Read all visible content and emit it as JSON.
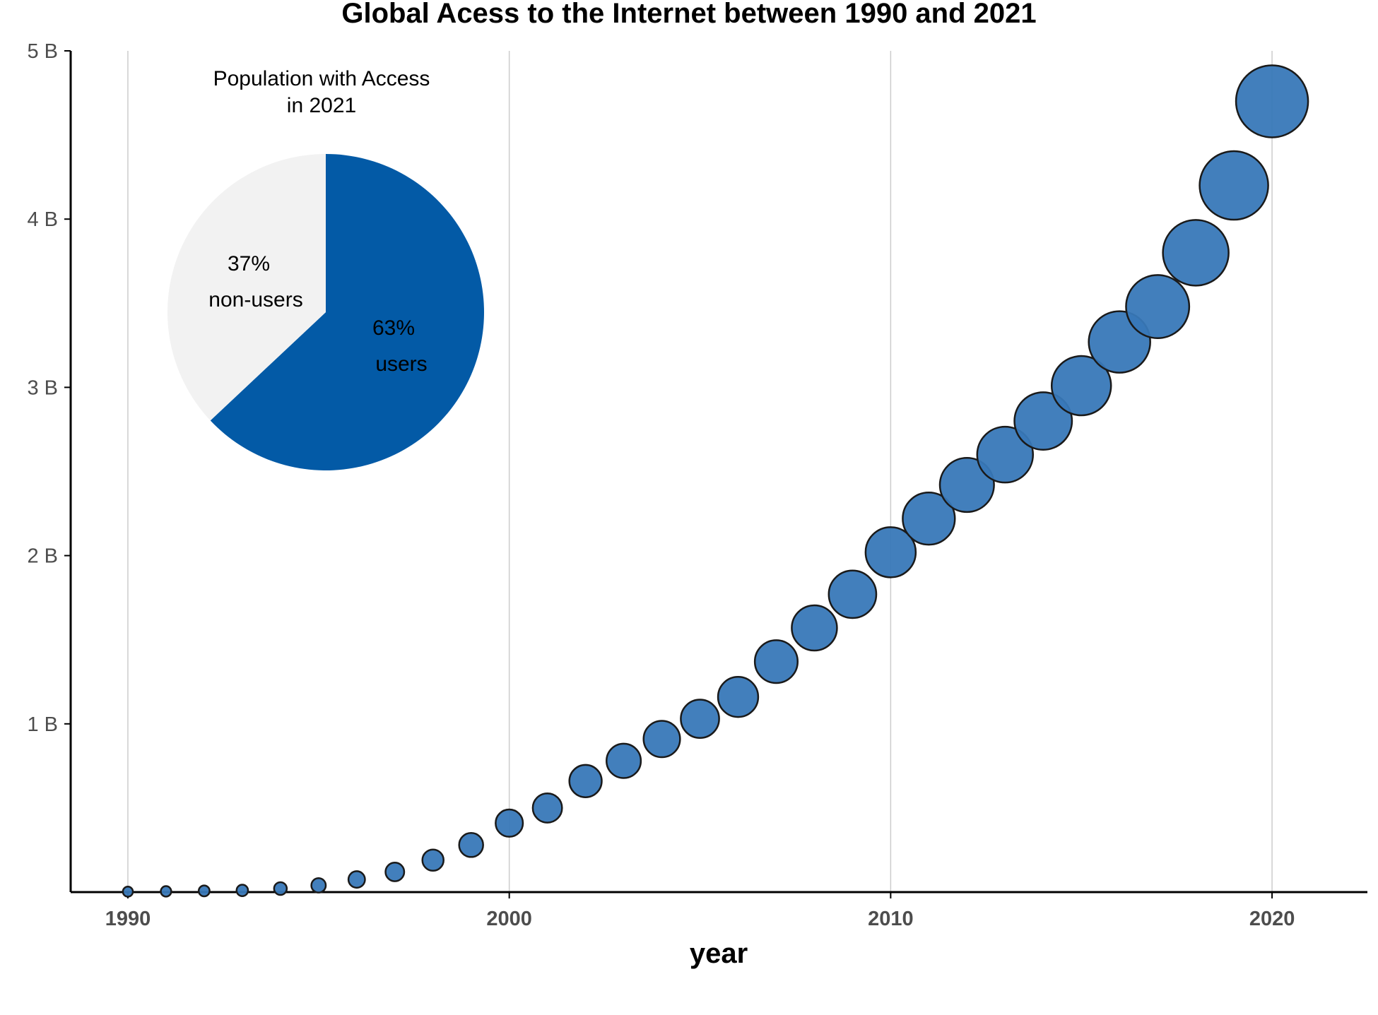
{
  "chart_data": [
    {
      "type": "scatter",
      "title": "Global Acess to the Internet between 1990 and 2021",
      "xlabel": "year",
      "ylabel": "",
      "xlim": [
        1988.5,
        2022.5
      ],
      "ylim": [
        0,
        5000000000
      ],
      "x_ticks": [
        1990,
        2000,
        2010,
        2020
      ],
      "y_ticks": [
        {
          "value": 1000000000,
          "label": "1 B"
        },
        {
          "value": 2000000000,
          "label": "2 B"
        },
        {
          "value": 3000000000,
          "label": "3 B"
        },
        {
          "value": 4000000000,
          "label": "4 B"
        },
        {
          "value": 5000000000,
          "label": "5 B"
        }
      ],
      "grid": "vertical",
      "marker_color": "#3878b8",
      "marker_edge_color": "#1a1a1a",
      "size_encoding": "y",
      "points": [
        {
          "x": 1990,
          "y": 2600000
        },
        {
          "x": 1991,
          "y": 4400000
        },
        {
          "x": 1992,
          "y": 7000000
        },
        {
          "x": 1993,
          "y": 10000000
        },
        {
          "x": 1994,
          "y": 21000000
        },
        {
          "x": 1995,
          "y": 40000000
        },
        {
          "x": 1996,
          "y": 75000000
        },
        {
          "x": 1997,
          "y": 120000000
        },
        {
          "x": 1998,
          "y": 190000000
        },
        {
          "x": 1999,
          "y": 280000000
        },
        {
          "x": 2000,
          "y": 410000000
        },
        {
          "x": 2001,
          "y": 500000000
        },
        {
          "x": 2002,
          "y": 660000000
        },
        {
          "x": 2003,
          "y": 780000000
        },
        {
          "x": 2004,
          "y": 910000000
        },
        {
          "x": 2005,
          "y": 1030000000
        },
        {
          "x": 2006,
          "y": 1160000000
        },
        {
          "x": 2007,
          "y": 1370000000
        },
        {
          "x": 2008,
          "y": 1570000000
        },
        {
          "x": 2009,
          "y": 1770000000
        },
        {
          "x": 2010,
          "y": 2020000000
        },
        {
          "x": 2011,
          "y": 2220000000
        },
        {
          "x": 2012,
          "y": 2420000000
        },
        {
          "x": 2013,
          "y": 2600000000
        },
        {
          "x": 2014,
          "y": 2800000000
        },
        {
          "x": 2015,
          "y": 3010000000
        },
        {
          "x": 2016,
          "y": 3270000000
        },
        {
          "x": 2017,
          "y": 3480000000
        },
        {
          "x": 2018,
          "y": 3800000000
        },
        {
          "x": 2019,
          "y": 4200000000
        },
        {
          "x": 2020,
          "y": 4700000000
        }
      ]
    },
    {
      "type": "pie",
      "title": "Population with Access\nin 2021",
      "slices": [
        {
          "value": 63,
          "label_pct": "63%",
          "label_name": "users",
          "color": "#035aa6"
        },
        {
          "value": 37,
          "label_pct": "37%",
          "label_name": "non-users",
          "color": "#f2f2f2"
        }
      ],
      "start": "12 o'clock",
      "direction": "clockwise"
    }
  ]
}
